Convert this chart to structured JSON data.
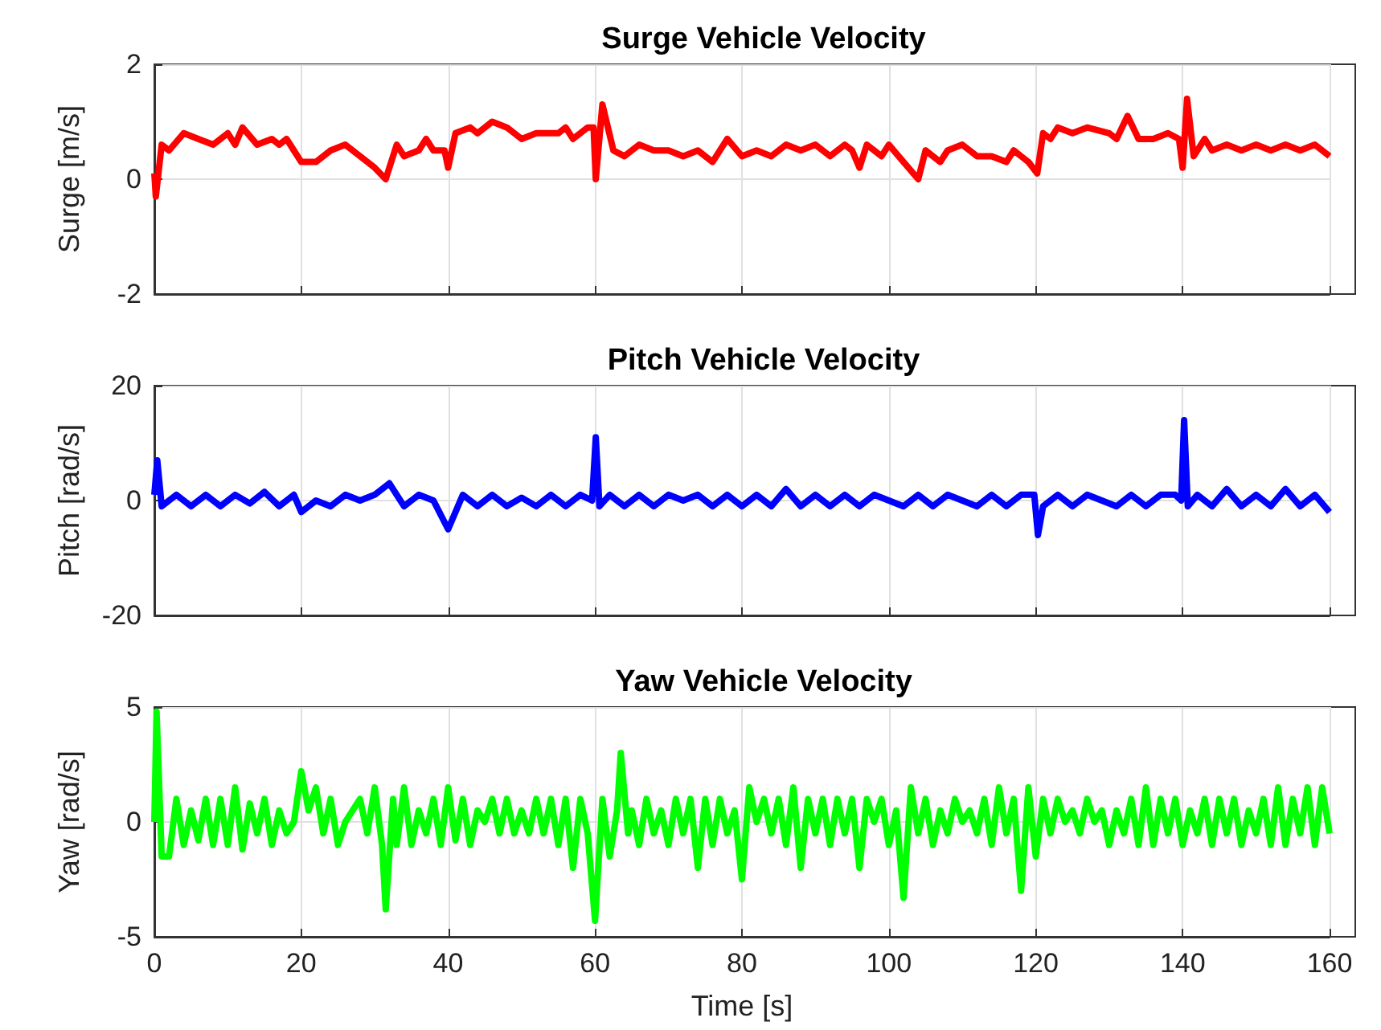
{
  "chart_data": [
    {
      "type": "line",
      "title": "Surge Vehicle Velocity",
      "ylabel": "Surge [m/s]",
      "xlim": [
        0,
        160
      ],
      "xticks": [
        0,
        20,
        40,
        60,
        80,
        100,
        120,
        140,
        160
      ],
      "ylim": [
        -2,
        2
      ],
      "yticks": [
        -2,
        0,
        2
      ],
      "grid": true,
      "tick_labels": "y",
      "series": [
        {
          "color": "#ff0000",
          "x": [
            0,
            0.2,
            1,
            2,
            4,
            6,
            8,
            10,
            11,
            12,
            14,
            16,
            17,
            18,
            19,
            20,
            22,
            24,
            26,
            28,
            30,
            31.5,
            33,
            34,
            36,
            37,
            38,
            39.5,
            40,
            41,
            43,
            44,
            46,
            48,
            50,
            52,
            55,
            56,
            57,
            59,
            59.8,
            60.1,
            61,
            62.5,
            64,
            66,
            68,
            70,
            72,
            74,
            76,
            78,
            80,
            82,
            84,
            86,
            88,
            90,
            92,
            94,
            95,
            96,
            97,
            99,
            100,
            102,
            104,
            105,
            107,
            108,
            110,
            112,
            114,
            116,
            117,
            119,
            120.2,
            121,
            122,
            123,
            125,
            127,
            130,
            131,
            132.5,
            134,
            136,
            138,
            139.5,
            140,
            140.6,
            141.5,
            143,
            144,
            146,
            148,
            150,
            152,
            154,
            156,
            158,
            160
          ],
          "values": [
            0.1,
            -0.3,
            0.6,
            0.5,
            0.8,
            0.7,
            0.6,
            0.8,
            0.6,
            0.9,
            0.6,
            0.7,
            0.6,
            0.7,
            0.5,
            0.3,
            0.3,
            0.5,
            0.6,
            0.4,
            0.2,
            0.0,
            0.6,
            0.4,
            0.5,
            0.7,
            0.5,
            0.5,
            0.2,
            0.8,
            0.9,
            0.8,
            1.0,
            0.9,
            0.7,
            0.8,
            0.8,
            0.9,
            0.7,
            0.9,
            0.9,
            0.0,
            1.3,
            0.5,
            0.4,
            0.6,
            0.5,
            0.5,
            0.4,
            0.5,
            0.3,
            0.7,
            0.4,
            0.5,
            0.4,
            0.6,
            0.5,
            0.6,
            0.4,
            0.6,
            0.5,
            0.2,
            0.6,
            0.4,
            0.6,
            0.3,
            0.0,
            0.5,
            0.3,
            0.5,
            0.6,
            0.4,
            0.4,
            0.3,
            0.5,
            0.3,
            0.1,
            0.8,
            0.7,
            0.9,
            0.8,
            0.9,
            0.8,
            0.7,
            1.1,
            0.7,
            0.7,
            0.8,
            0.7,
            0.2,
            1.4,
            0.4,
            0.7,
            0.5,
            0.6,
            0.5,
            0.6,
            0.5,
            0.6,
            0.5,
            0.6,
            0.4
          ]
        }
      ]
    },
    {
      "type": "line",
      "title": "Pitch Vehicle Velocity",
      "ylabel": "Pitch [rad/s]",
      "xlim": [
        0,
        160
      ],
      "xticks": [
        0,
        20,
        40,
        60,
        80,
        100,
        120,
        140,
        160
      ],
      "ylim": [
        -20,
        20
      ],
      "yticks": [
        -20,
        0,
        20
      ],
      "grid": true,
      "tick_labels": "y",
      "series": [
        {
          "color": "#0000ff",
          "x": [
            0,
            0.4,
            1,
            3,
            5,
            7,
            9,
            11,
            13,
            15,
            17,
            19,
            20,
            22,
            24,
            26,
            28,
            30,
            32,
            34,
            36,
            38,
            40,
            42,
            44,
            46,
            48,
            50,
            52,
            54,
            56,
            58,
            59.6,
            60.1,
            60.6,
            62,
            64,
            66,
            68,
            70,
            72,
            74,
            76,
            78,
            80,
            82,
            84,
            86,
            88,
            90,
            92,
            94,
            96,
            98,
            100,
            102,
            104,
            106,
            108,
            110,
            112,
            114,
            116,
            118,
            119.8,
            120.3,
            121,
            123,
            125,
            127,
            129,
            131,
            133,
            135,
            137,
            139,
            139.8,
            140.2,
            140.7,
            142,
            144,
            146,
            148,
            150,
            152,
            154,
            156,
            158,
            160
          ],
          "values": [
            1,
            7,
            -1,
            1,
            -1,
            1,
            -1,
            1,
            -0.5,
            1.5,
            -1,
            1,
            -2,
            0,
            -1,
            1,
            0,
            1,
            3,
            -1,
            1,
            0,
            -5,
            1,
            -1,
            1,
            -1,
            0.5,
            -1,
            1,
            -1,
            1,
            0,
            11,
            -1,
            1,
            -1,
            1,
            -1,
            1,
            0,
            1,
            -1,
            1,
            -1,
            1,
            -1,
            2,
            -1,
            1,
            -1,
            1,
            -1,
            1,
            0,
            -1,
            1,
            -1,
            1,
            0,
            -1,
            1,
            -1,
            1,
            1,
            -6,
            -1,
            1,
            -1,
            1,
            0,
            -1,
            1,
            -1,
            1,
            1,
            0,
            14,
            -1,
            1,
            -1,
            2,
            -1,
            1,
            -1,
            2,
            -1,
            1,
            -2
          ]
        }
      ]
    },
    {
      "type": "line",
      "title": "Yaw Vehicle Velocity",
      "xlabel": "Time [s]",
      "ylabel": "Yaw [rad/s]",
      "xlim": [
        0,
        160
      ],
      "xticks": [
        0,
        20,
        40,
        60,
        80,
        100,
        120,
        140,
        160
      ],
      "ylim": [
        -5,
        5
      ],
      "yticks": [
        -5,
        0,
        5
      ],
      "grid": true,
      "series": [
        {
          "color": "#00ff00",
          "x": [
            0,
            0.3,
            1,
            2,
            3,
            4,
            5,
            6,
            7,
            8,
            9,
            10,
            11,
            12,
            13,
            14,
            15,
            16,
            17,
            18,
            19,
            20,
            21,
            22,
            23,
            24,
            25,
            26,
            27,
            28,
            29,
            30,
            31,
            31.5,
            32.5,
            33,
            34,
            35,
            36,
            37,
            38,
            39,
            40,
            41,
            42,
            43,
            44,
            45,
            46,
            47,
            48,
            49,
            50,
            51,
            52,
            53,
            54,
            55,
            56,
            57,
            58,
            59,
            60,
            61,
            62,
            63,
            63.5,
            64.5,
            65,
            66,
            67,
            68,
            69,
            70,
            71,
            72,
            73,
            74,
            75,
            76,
            77,
            78,
            79,
            80,
            81,
            82,
            83,
            84,
            85,
            86,
            87,
            88,
            89,
            90,
            91,
            92,
            93,
            94,
            95,
            96,
            97,
            98,
            99,
            100,
            101,
            102,
            103,
            104,
            105,
            106,
            107,
            108,
            109,
            110,
            111,
            112,
            113,
            114,
            115,
            116,
            117,
            118,
            119,
            120,
            121,
            122,
            123,
            124,
            125,
            126,
            127,
            128,
            129,
            130,
            131,
            132,
            133,
            134,
            135,
            136,
            137,
            138,
            139,
            140,
            141,
            142,
            143,
            144,
            145,
            146,
            147,
            148,
            149,
            150,
            151,
            152,
            153,
            154,
            155,
            156,
            157,
            158,
            159,
            160
          ],
          "values": [
            0,
            4.8,
            -1.5,
            -1.5,
            1,
            -1,
            0.5,
            -0.8,
            1,
            -1,
            1,
            -1,
            1.5,
            -1.2,
            0.8,
            -0.5,
            1,
            -1,
            0.5,
            -0.5,
            0,
            2.2,
            0.5,
            1.5,
            -0.5,
            1,
            -1,
            0,
            0.5,
            1,
            -0.5,
            1.5,
            -1,
            -3.8,
            1,
            -1,
            1.5,
            -1,
            0.5,
            -0.5,
            1,
            -1,
            1.5,
            -0.8,
            1,
            -1,
            0.5,
            0,
            1,
            -0.5,
            1,
            -0.5,
            0.5,
            -0.5,
            1,
            -0.5,
            1,
            -1,
            1,
            -2,
            1,
            -0.5,
            -4.3,
            1,
            -1.5,
            0.5,
            3,
            -0.5,
            0.5,
            -1,
            1,
            -0.5,
            0.5,
            -1,
            1,
            -0.5,
            1,
            -2,
            1,
            -1,
            1,
            -0.5,
            0.5,
            -2.5,
            1.5,
            0,
            1,
            -0.5,
            1,
            -1,
            1.5,
            -2,
            1,
            -0.5,
            1,
            -1,
            1,
            -0.5,
            1,
            -2,
            1,
            0,
            1,
            -1,
            0.5,
            -3.3,
            1.5,
            -0.5,
            1,
            -1,
            0.5,
            -0.5,
            1,
            0,
            0.5,
            -0.5,
            1,
            -1,
            1.5,
            -0.5,
            1,
            -3,
            1.5,
            -1.5,
            1,
            -0.5,
            1,
            0,
            0.5,
            -0.5,
            1,
            0,
            0.5,
            -1,
            0.5,
            -0.5,
            1,
            -1,
            1.5,
            -1,
            1,
            -0.5,
            1,
            -1,
            0.5,
            -0.5,
            1,
            -1,
            1,
            -0.5,
            1,
            -1,
            0.5,
            -0.5,
            1,
            -1,
            1.5,
            -1,
            1,
            -0.5,
            1.5,
            -1,
            1.5,
            -0.5
          ]
        }
      ]
    }
  ]
}
